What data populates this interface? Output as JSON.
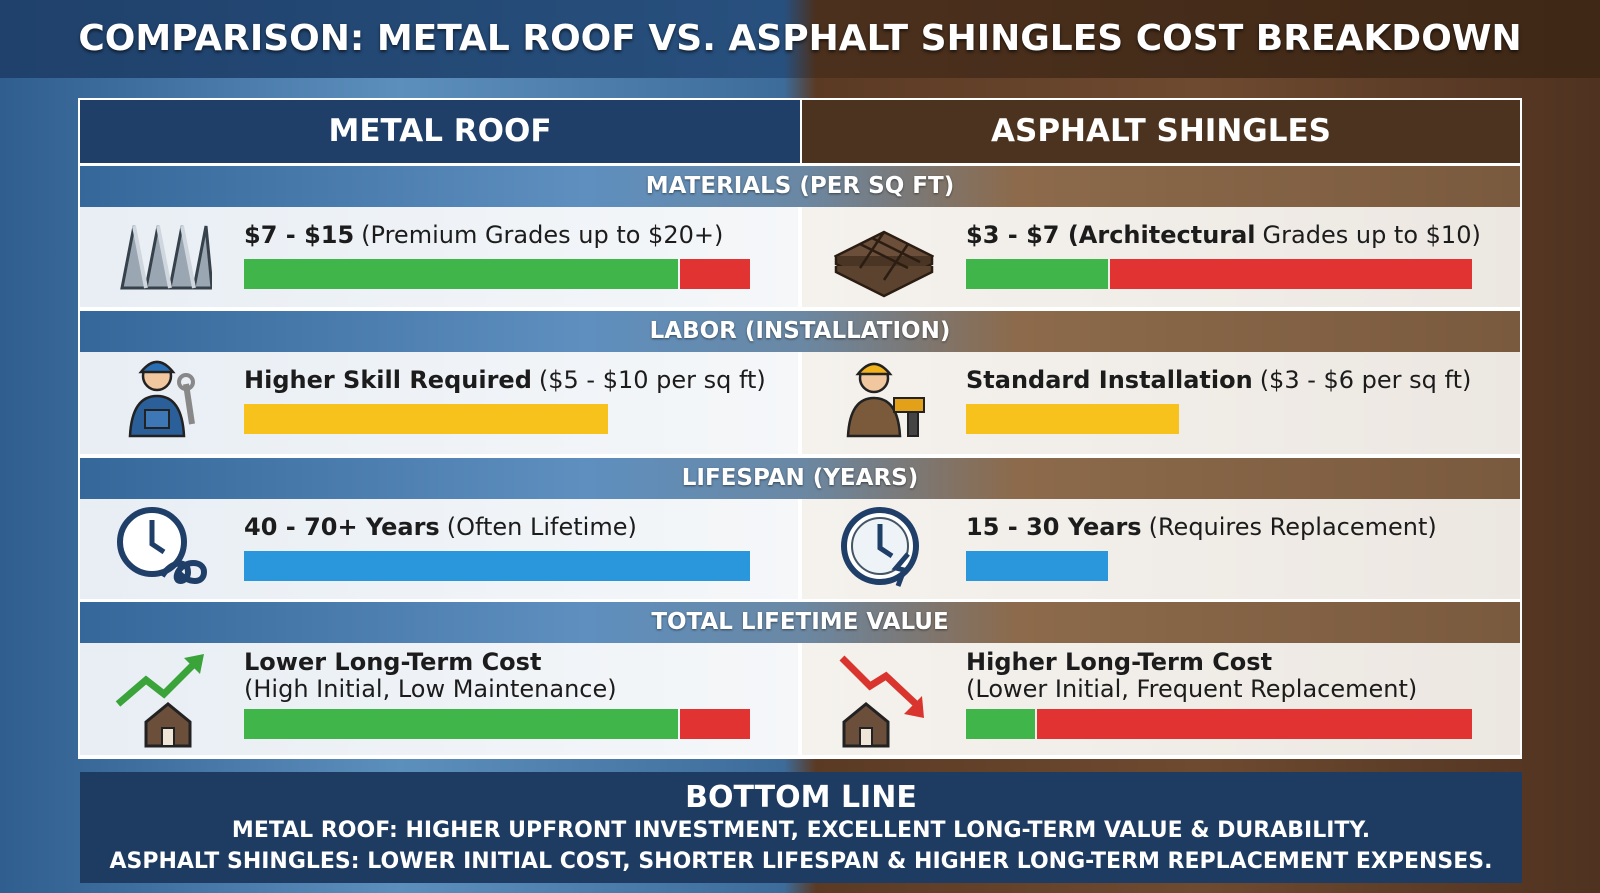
{
  "title": "COMPARISON: METAL ROOF VS. ASPHALT SHINGLES COST BREAKDOWN",
  "columns": [
    "METAL ROOF",
    "ASPHALT SHINGLES"
  ],
  "sections": [
    {
      "heading": "MATERIALS (PER SQ FT)",
      "left": {
        "bold": "$7 - $15",
        "text": "(Premium Grades up to $20+)"
      },
      "right": {
        "bold": "$3 - $7 (Architectural",
        "text": "Grades up to $10)"
      }
    },
    {
      "heading": "LABOR (INSTALLATION)",
      "left": {
        "bold": "Higher Skill Required",
        "text": "($5 - $10 per sq ft)"
      },
      "right": {
        "bold": "Standard Installation",
        "text": "($3 - $6 per sq ft)"
      }
    },
    {
      "heading": "LIFESPAN (YEARS)",
      "left": {
        "bold": "40 - 70+ Years",
        "text": "(Often Lifetime)"
      },
      "right": {
        "bold": "15 - 30 Years",
        "text": "(Requires Replacement)"
      }
    },
    {
      "heading": "TOTAL LIFETIME VALUE",
      "left": {
        "bold": "Lower Long-Term Cost",
        "text": "(High Initial, Low Maintenance)"
      },
      "right": {
        "bold": "Higher Long-Term Cost",
        "text": "(Lower Initial, Frequent Replacement)"
      }
    }
  ],
  "bottom_line": {
    "heading": "BOTTOM LINE",
    "lines": [
      "METAL ROOF: HIGHER UPFRONT INVESTMENT, EXCELLENT LONG-TERM VALUE & DURABILITY.",
      "ASPHALT SHINGLES: LOWER INITIAL COST, SHORTER LIFESPAN & HIGHER LONG-TERM REPLACEMENT EXPENSES."
    ]
  }
}
